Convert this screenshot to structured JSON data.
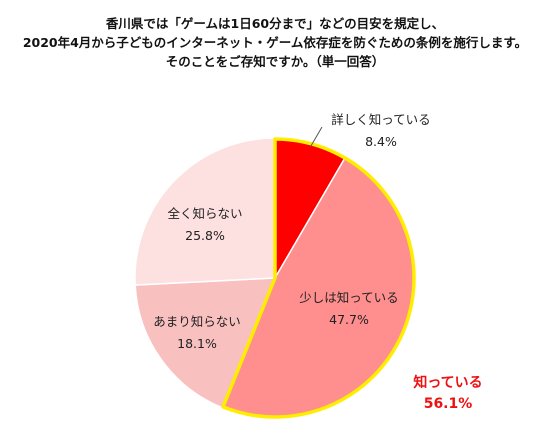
{
  "chart_data": {
    "type": "pie",
    "title_lines": [
      "香川県では「ゲームは1日60分まで」などの目安を規定し、",
      "2020年4月から子どものインターネット・ゲーム依存症を防ぐための条例を施行します。",
      "そのことをご存知ですか。（単一回答）"
    ],
    "slices": [
      {
        "label": "詳しく知っている",
        "value": 8.4,
        "value_text": "8.4%",
        "color": "#ff0000"
      },
      {
        "label": "少しは知っている",
        "value": 47.7,
        "value_text": "47.7%",
        "color": "#ff8e8e"
      },
      {
        "label": "あまり知らない",
        "value": 18.1,
        "value_text": "18.1%",
        "color": "#f9c0c0"
      },
      {
        "label": "全く知らない",
        "value": 25.8,
        "value_text": "25.8%",
        "color": "#fde0e0"
      }
    ],
    "highlight": {
      "label": "知っている",
      "value_text": "56.1%",
      "color": "#ffee00"
    }
  }
}
